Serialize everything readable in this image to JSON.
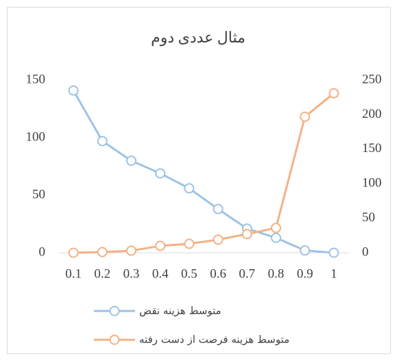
{
  "chart_data": {
    "type": "line",
    "title": "مثال عددی دوم",
    "categories": [
      "0.1",
      "0.2",
      "0.3",
      "0.4",
      "0.5",
      "0.6",
      "0.7",
      "0.8",
      "0.9",
      "1"
    ],
    "series": [
      {
        "name": "متوسط هزینه نقض",
        "color": "#9dc3e6",
        "values": [
          141,
          97,
          80,
          69,
          56,
          38,
          21,
          13,
          2,
          0
        ]
      },
      {
        "name": "متوسط هزینه فرصت از دست رفته",
        "color": "#f4b183",
        "axis": "y2",
        "values": [
          0,
          1,
          3,
          10,
          13,
          19,
          27,
          36,
          197,
          231
        ]
      }
    ],
    "ylim": [
      0,
      150
    ],
    "yticks": [
      0,
      50,
      100,
      150
    ],
    "y2lim": [
      0,
      250
    ],
    "y2ticks": [
      0,
      50,
      100,
      150,
      200,
      250
    ],
    "legend": "bottom",
    "grid": false
  }
}
